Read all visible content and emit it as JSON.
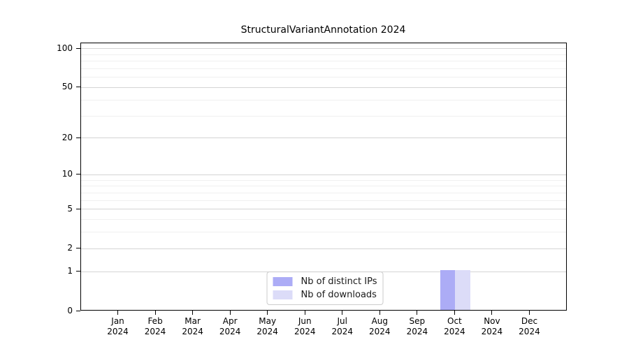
{
  "chart_data": {
    "type": "bar",
    "title": "StructuralVariantAnnotation 2024",
    "categories": [
      "Jan\n2024",
      "Feb\n2024",
      "Mar\n2024",
      "Apr\n2024",
      "May\n2024",
      "Jun\n2024",
      "Jul\n2024",
      "Aug\n2024",
      "Sep\n2024",
      "Oct\n2024",
      "Nov\n2024",
      "Dec\n2024"
    ],
    "series": [
      {
        "name": "Nb of distinct IPs",
        "color": "#acacf6",
        "values": [
          0,
          0,
          0,
          0,
          0,
          0,
          0,
          0,
          0,
          1,
          0,
          0
        ]
      },
      {
        "name": "Nb of downloads",
        "color": "#dcdcf8",
        "values": [
          0,
          0,
          0,
          0,
          0,
          0,
          0,
          0,
          0,
          1,
          0,
          0
        ]
      }
    ],
    "xlabel": "",
    "ylabel": "",
    "yscale": "log1p",
    "ylim": [
      0,
      110
    ],
    "yticks": [
      0,
      1,
      2,
      5,
      10,
      20,
      50,
      100
    ],
    "minor_gridlines": [
      3,
      4,
      6,
      7,
      8,
      9,
      30,
      40,
      60,
      70,
      80,
      90
    ],
    "grid": true,
    "legend_position": "lower center",
    "colors": {
      "major_grid": "#d4d4d4",
      "minor_grid": "#f0f0f0",
      "spine": "#000000",
      "text": "#1a1a1a"
    }
  }
}
